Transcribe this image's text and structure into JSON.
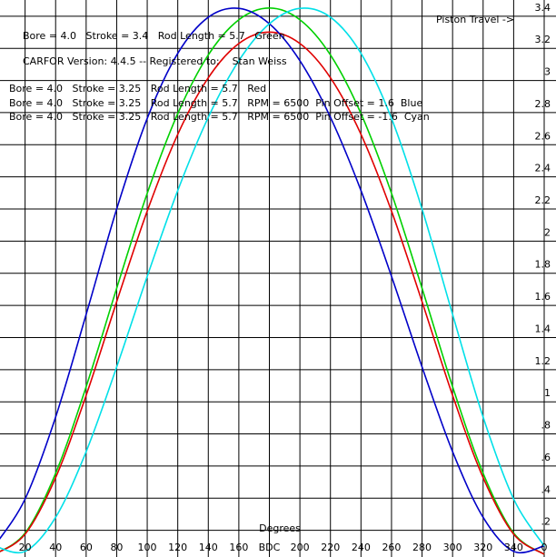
{
  "chart_data": {
    "type": "line",
    "y_label": "Piston Travel ->",
    "x_label": "Degrees",
    "annotations": [
      "CARFOR Version: 4.4.5 -- Registered to:    Stan Weiss"
    ],
    "x": [
      0,
      20,
      40,
      60,
      80,
      100,
      120,
      140,
      160,
      180,
      200,
      220,
      240,
      260,
      280,
      300,
      320,
      340,
      360
    ],
    "series": [
      {
        "name": "Bore = 4.0   Stroke = 3.4   Rod Length = 5.7   Green",
        "color": "#00d000",
        "values": [
          0,
          0.132,
          0.504,
          1.043,
          1.656,
          2.247,
          2.743,
          3.108,
          3.327,
          3.4,
          3.327,
          3.108,
          2.743,
          2.247,
          1.656,
          1.043,
          0.504,
          0.132,
          0
        ]
      },
      {
        "name": "Bore = 4.0   Stroke = 3.25   Rod Length = 5.7   Red",
        "color": "#e00000",
        "values": [
          0,
          0.125,
          0.477,
          0.989,
          1.572,
          2.136,
          2.614,
          2.966,
          3.179,
          3.25,
          3.179,
          2.966,
          2.614,
          2.136,
          1.572,
          0.989,
          0.477,
          0.125,
          0
        ]
      },
      {
        "name": "Bore = 4.0   Stroke = 3.25   Rod Length = 5.7   RPM = 6500  Pin Offset = 1.6  Blue",
        "color": "#0000c8",
        "values": [
          0.052,
          0.344,
          0.854,
          1.493,
          2.149,
          2.713,
          3.118,
          3.343,
          3.398,
          3.302,
          3.072,
          2.72,
          2.264,
          1.73,
          1.166,
          0.639,
          0.23,
          0.018,
          0.052
        ]
      },
      {
        "name": "Bore = 4.0   Stroke = 3.25   Rod Length = 5.7   RPM = 6500  Pin Offset = -1.6  Cyan",
        "color": "#00e0e8",
        "values": [
          0.052,
          0.018,
          0.23,
          0.639,
          1.166,
          1.73,
          2.264,
          2.72,
          3.072,
          3.302,
          3.398,
          3.343,
          3.118,
          2.713,
          2.149,
          1.493,
          0.854,
          0.344,
          0.052
        ]
      }
    ],
    "xlim": [
      0,
      360
    ],
    "ylim": [
      0,
      3.45
    ],
    "xticks": [
      20,
      40,
      60,
      80,
      100,
      120,
      140,
      160,
      {
        "value": 180,
        "label": "BDC"
      },
      200,
      220,
      240,
      260,
      280,
      300,
      320,
      340,
      {
        "value": 360,
        "label": "0"
      }
    ],
    "yticks": [
      {
        "value": 0.2,
        "label": ".2"
      },
      {
        "value": 0.4,
        "label": ".4"
      },
      {
        "value": 0.6,
        "label": ".6"
      },
      {
        "value": 0.8,
        "label": ".8"
      },
      1,
      1.2,
      1.4,
      1.6,
      1.8,
      2,
      2.2,
      2.4,
      2.6,
      2.8,
      3,
      3.2,
      3.4
    ],
    "grid": true
  }
}
